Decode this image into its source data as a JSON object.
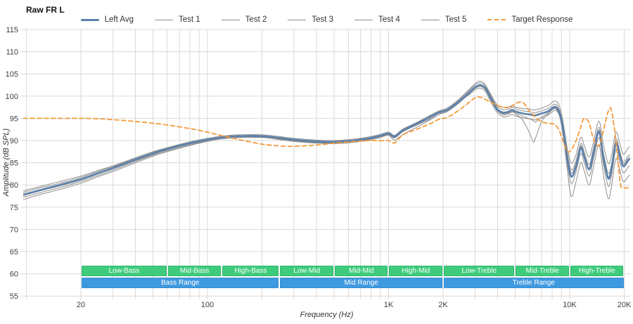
{
  "title": "Raw FR L",
  "axes": {
    "x_title": "Frequency (Hz)",
    "y_title": "Amplitude (dB SPL)"
  },
  "colors": {
    "grid": "#d9d9d9",
    "tick_text": "#404040",
    "left_avg": "#5b80ac",
    "test_line": "#8f8f8f",
    "target": "#f59a3c",
    "band_green": "#3ecb7c",
    "band_green_border": "#2fb96c",
    "band_blue": "#3f99df",
    "band_blue_border": "#338fd4",
    "band_text": "#ffffff"
  },
  "legend": [
    {
      "label": "Left Avg",
      "swatch": "thick",
      "color": "#5b80ac"
    },
    {
      "label": "Test 1",
      "swatch": "thin",
      "color": "#8f8f8f"
    },
    {
      "label": "Test 2",
      "swatch": "thin",
      "color": "#8f8f8f"
    },
    {
      "label": "Test 3",
      "swatch": "thin",
      "color": "#8f8f8f"
    },
    {
      "label": "Test 4",
      "swatch": "thin",
      "color": "#8f8f8f"
    },
    {
      "label": "Test 5",
      "swatch": "thin",
      "color": "#8f8f8f"
    },
    {
      "label": "Target Response",
      "swatch": "dash",
      "color": "#f59a3c"
    }
  ],
  "bands": {
    "sub_ranges": [
      {
        "label": "Low-Bass",
        "f1": 20,
        "f2": 60
      },
      {
        "label": "Mid-Bass",
        "f1": 60,
        "f2": 120
      },
      {
        "label": "High-Bass",
        "f1": 120,
        "f2": 250
      },
      {
        "label": "Low-Mid",
        "f1": 250,
        "f2": 500
      },
      {
        "label": "Mid-Mid",
        "f1": 500,
        "f2": 1000
      },
      {
        "label": "High-Mid",
        "f1": 1000,
        "f2": 2000
      },
      {
        "label": "Low-Treble",
        "f1": 2000,
        "f2": 5000
      },
      {
        "label": "Mid-Treble",
        "f1": 5000,
        "f2": 10000
      },
      {
        "label": "High-Treble",
        "f1": 10000,
        "f2": 20000
      }
    ],
    "main_ranges": [
      {
        "label": "Bass Range",
        "f1": 20,
        "f2": 250
      },
      {
        "label": "Mid Range",
        "f1": 250,
        "f2": 2000
      },
      {
        "label": "Treble Range",
        "f1": 2000,
        "f2": 20000
      }
    ]
  },
  "chart_data": {
    "type": "line",
    "title": "Raw FR L",
    "xlabel": "Frequency (Hz)",
    "ylabel": "Amplitude (dB SPL)",
    "x_scale": "log",
    "xlim": [
      9.6,
      21800
    ],
    "ylim": [
      55,
      115
    ],
    "grid": true,
    "legend_position": "top-center",
    "y_ticks": [
      55,
      60,
      65,
      70,
      75,
      80,
      85,
      90,
      95,
      100,
      105,
      110,
      115
    ],
    "x_gridlines": [
      10,
      20,
      30,
      40,
      50,
      60,
      70,
      80,
      90,
      100,
      200,
      300,
      400,
      500,
      600,
      700,
      800,
      900,
      1000,
      2000,
      3000,
      4000,
      5000,
      6000,
      7000,
      8000,
      9000,
      10000,
      20000
    ],
    "x_tick_labels": [
      {
        "f": 20,
        "label": "20"
      },
      {
        "f": 100,
        "label": "100"
      },
      {
        "f": 1000,
        "label": "1K"
      },
      {
        "f": 2000,
        "label": "2K"
      },
      {
        "f": 10000,
        "label": "10K"
      },
      {
        "f": 20000,
        "label": "20K"
      }
    ],
    "x": [
      9.6,
      12,
      15,
      20,
      25,
      30,
      40,
      50,
      60,
      80,
      100,
      120,
      150,
      200,
      250,
      300,
      400,
      500,
      600,
      700,
      800,
      900,
      1000,
      1080,
      1200,
      1400,
      1700,
      1900,
      2100,
      2400,
      2800,
      3000,
      3200,
      3400,
      3600,
      3800,
      4000,
      4300,
      4600,
      4800,
      5000,
      5500,
      6000,
      6300,
      6500,
      7000,
      7600,
      8300,
      8800,
      9200,
      9700,
      10200,
      10800,
      11500,
      12000,
      12800,
      13500,
      14500,
      15300,
      16300,
      17000,
      18000,
      19000,
      19800,
      21000,
      21400
    ],
    "series": [
      {
        "name": "Test 1",
        "role": "test",
        "values": [
          76.7,
          77.9,
          78.9,
          80.4,
          81.9,
          83.0,
          85.0,
          86.5,
          87.5,
          88.9,
          89.8,
          90.4,
          90.7,
          90.8,
          90.4,
          90.0,
          89.6,
          89.5,
          89.7,
          90.0,
          90.4,
          90.9,
          91.4,
          90.7,
          92.1,
          93.4,
          95.5,
          96.6,
          97.3,
          99.0,
          101.6,
          102.8,
          103.4,
          102.7,
          101.0,
          99.3,
          98.0,
          97.4,
          97.6,
          97.9,
          97.6,
          97.2,
          97.1,
          96.9,
          96.9,
          97.3,
          97.9,
          98.9,
          97.6,
          94.1,
          88.2,
          84.9,
          86.6,
          90.7,
          89.0,
          86.3,
          89.5,
          94.4,
          89.4,
          84.9,
          86.5,
          91.9,
          89.0,
          86.9,
          88.3,
          88.6
        ]
      },
      {
        "name": "Test 2",
        "role": "test",
        "values": [
          77.2,
          78.3,
          79.3,
          80.8,
          82.2,
          83.3,
          85.3,
          86.7,
          87.7,
          89.0,
          89.9,
          90.4,
          90.7,
          90.7,
          90.5,
          90.1,
          89.7,
          89.6,
          89.8,
          90.1,
          90.5,
          91.0,
          91.5,
          90.8,
          92.2,
          93.7,
          95.4,
          96.4,
          97.0,
          98.6,
          100.4,
          101.4,
          101.8,
          101.2,
          99.4,
          97.6,
          96.2,
          95.4,
          95.5,
          95.9,
          95.6,
          95.1,
          94.9,
          94.7,
          94.7,
          95.1,
          95.7,
          96.8,
          95.6,
          93.4,
          87.2,
          83.4,
          85.2,
          89.3,
          87.6,
          84.5,
          88.0,
          93.0,
          87.6,
          82.7,
          84.6,
          90.3,
          87.3,
          85.2,
          86.5,
          86.8
        ]
      },
      {
        "name": "Test 3",
        "role": "test",
        "values": [
          77.6,
          78.7,
          79.7,
          81.1,
          82.5,
          83.6,
          85.5,
          86.9,
          87.9,
          89.2,
          89.9,
          90.4,
          90.7,
          90.7,
          90.2,
          89.8,
          89.4,
          89.3,
          89.5,
          89.8,
          90.2,
          90.7,
          91.2,
          90.1,
          91.4,
          92.8,
          94.7,
          95.9,
          96.6,
          98.2,
          100.6,
          101.7,
          102.2,
          101.6,
          99.8,
          98.0,
          96.6,
          95.8,
          96.0,
          96.4,
          96.1,
          94.6,
          91.7,
          89.7,
          90.7,
          94.3,
          96.0,
          97.2,
          95.4,
          91.0,
          83.5,
          77.4,
          80.5,
          85.0,
          83.3,
          80.0,
          83.8,
          89.0,
          82.7,
          77.0,
          79.5,
          85.9,
          83.0,
          80.7,
          81.9,
          82.2
        ]
      },
      {
        "name": "Test 4",
        "role": "test",
        "values": [
          78.3,
          79.4,
          80.3,
          81.7,
          83.1,
          84.1,
          86.0,
          87.4,
          88.4,
          89.7,
          90.5,
          91.0,
          91.3,
          91.3,
          90.9,
          90.5,
          90.1,
          90.0,
          90.2,
          90.5,
          90.9,
          91.4,
          91.9,
          91.2,
          92.6,
          93.9,
          95.7,
          96.7,
          97.3,
          98.9,
          101.4,
          102.5,
          103.0,
          102.4,
          100.7,
          98.9,
          97.6,
          96.9,
          97.1,
          97.5,
          97.2,
          96.7,
          96.5,
          96.3,
          96.3,
          96.7,
          97.2,
          98.2,
          96.8,
          93.1,
          86.7,
          82.7,
          84.6,
          88.8,
          87.0,
          83.8,
          87.4,
          92.4,
          87.0,
          82.0,
          84.0,
          89.7,
          86.8,
          84.7,
          86.0,
          86.3
        ]
      },
      {
        "name": "Test 5",
        "role": "test",
        "values": [
          78.7,
          79.7,
          80.7,
          82.0,
          83.3,
          84.3,
          86.1,
          87.5,
          88.4,
          89.6,
          90.3,
          90.8,
          91.1,
          91.1,
          90.3,
          89.9,
          89.5,
          89.4,
          89.6,
          89.9,
          90.3,
          90.8,
          91.3,
          90.6,
          92.0,
          93.3,
          94.9,
          95.9,
          96.5,
          98.2,
          100.7,
          101.8,
          102.3,
          101.7,
          99.9,
          98.1,
          96.7,
          96.0,
          96.2,
          96.6,
          96.3,
          95.5,
          94.9,
          94.5,
          94.2,
          95.3,
          96.2,
          97.3,
          95.7,
          91.6,
          84.7,
          80.4,
          82.7,
          87.1,
          85.2,
          82.0,
          85.6,
          90.7,
          85.0,
          79.8,
          82.0,
          87.9,
          84.9,
          82.7,
          84.0,
          84.3
        ]
      },
      {
        "name": "Left Avg",
        "role": "average",
        "values": [
          77.8,
          78.9,
          79.9,
          81.3,
          82.7,
          83.8,
          85.7,
          87.1,
          88.1,
          89.4,
          90.2,
          90.7,
          91.0,
          91.0,
          90.6,
          90.2,
          89.8,
          89.7,
          89.9,
          90.2,
          90.6,
          91.1,
          91.6,
          90.9,
          92.3,
          93.6,
          95.3,
          96.3,
          96.9,
          98.5,
          100.9,
          102.0,
          102.5,
          101.9,
          100.2,
          98.4,
          97.0,
          96.3,
          96.5,
          96.9,
          96.6,
          96.1,
          95.9,
          95.7,
          95.7,
          96.1,
          96.6,
          97.6,
          96.2,
          92.5,
          86.0,
          81.9,
          84.0,
          88.3,
          86.5,
          83.5,
          87.0,
          92.0,
          86.5,
          81.5,
          83.5,
          89.3,
          86.3,
          84.2,
          85.5,
          85.8
        ]
      },
      {
        "name": "Target Response",
        "role": "target",
        "values": [
          95.0,
          95.0,
          95.0,
          95.0,
          94.9,
          94.7,
          94.3,
          93.9,
          93.5,
          92.7,
          91.9,
          91.1,
          90.2,
          89.2,
          88.8,
          88.7,
          89.0,
          89.4,
          89.7,
          89.9,
          90.0,
          90.0,
          90.0,
          89.5,
          91.3,
          92.4,
          93.8,
          94.8,
          95.2,
          96.6,
          98.7,
          99.6,
          99.8,
          99.3,
          98.8,
          98.3,
          97.9,
          97.5,
          97.4,
          97.7,
          98.3,
          98.6,
          96.6,
          95.8,
          95.2,
          94.2,
          93.9,
          93.6,
          92.0,
          89.8,
          87.5,
          87.9,
          89.8,
          93.0,
          95.0,
          94.0,
          90.5,
          88.8,
          92.0,
          96.5,
          96.8,
          90.0,
          80.5,
          79.4,
          79.4,
          79.5
        ]
      }
    ]
  }
}
